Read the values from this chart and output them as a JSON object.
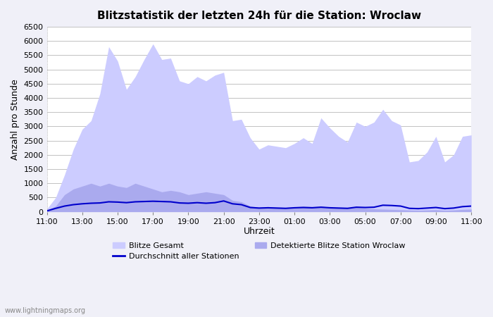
{
  "title": "Blitzstatistik der letzten 24h für die Station: Wroclaw",
  "xlabel": "Uhrzeit",
  "ylabel": "Anzahl pro Stunde",
  "watermark": "www.lightningmaps.org",
  "x_labels": [
    "11:00",
    "13:00",
    "15:00",
    "17:00",
    "19:00",
    "21:00",
    "23:00",
    "01:00",
    "03:00",
    "05:00",
    "07:00",
    "09:00",
    "11:00"
  ],
  "ylim": [
    0,
    6500
  ],
  "yticks": [
    0,
    500,
    1000,
    1500,
    2000,
    2500,
    3000,
    3500,
    4000,
    4500,
    5000,
    5500,
    6000,
    6500
  ],
  "bg_color": "#f0f0f8",
  "plot_bg_color": "#ffffff",
  "gesamt_color": "#ccccff",
  "gesamt_edge_color": "#ccccff",
  "wroclaw_color": "#aaaaee",
  "wroclaw_edge_color": "#aaaaee",
  "avg_line_color": "#0000cc",
  "legend_blitze_gesamt": "Blitze Gesamt",
  "legend_wroclaw": "Detektierte Blitze Station Wroclaw",
  "legend_avg": "Durchschnitt aller Stationen",
  "x_indices": [
    0,
    1,
    2,
    3,
    4,
    5,
    6,
    7,
    8,
    9,
    10,
    11,
    12,
    13,
    14,
    15,
    16,
    17,
    18,
    19,
    20,
    21,
    22,
    23,
    24,
    25,
    26,
    27,
    28,
    29,
    30,
    31,
    32,
    33,
    34,
    35,
    36,
    37,
    38,
    39,
    40,
    41,
    42,
    43,
    44,
    45,
    46,
    47,
    48
  ],
  "gesamt_values": [
    100,
    500,
    1300,
    2200,
    2900,
    3200,
    4150,
    5800,
    5300,
    4300,
    4750,
    5350,
    5900,
    5350,
    5400,
    4600,
    4500,
    4750,
    4600,
    4800,
    4900,
    3200,
    3250,
    2600,
    2200,
    2350,
    2300,
    2250,
    2400,
    2600,
    2400,
    3300,
    2950,
    2650,
    2450,
    3150,
    3000,
    3150,
    3600,
    3200,
    3050,
    1750,
    1800,
    2100,
    2650,
    1750,
    2000,
    2650,
    2700
  ],
  "wroclaw_values": [
    50,
    200,
    600,
    800,
    900,
    1000,
    900,
    1000,
    900,
    850,
    1000,
    900,
    800,
    700,
    750,
    700,
    600,
    650,
    700,
    650,
    600,
    400,
    350,
    200,
    150,
    180,
    160,
    150,
    170,
    200,
    180,
    200,
    150,
    130,
    120,
    150,
    120,
    100,
    90,
    80,
    70,
    60,
    50,
    60,
    70,
    50,
    60,
    80,
    90
  ],
  "avg_values": [
    30,
    120,
    200,
    250,
    280,
    300,
    310,
    350,
    340,
    320,
    350,
    360,
    370,
    360,
    350,
    310,
    300,
    320,
    300,
    320,
    380,
    280,
    250,
    150,
    130,
    140,
    130,
    120,
    140,
    150,
    140,
    160,
    140,
    130,
    120,
    160,
    150,
    160,
    230,
    220,
    200,
    120,
    110,
    130,
    150,
    110,
    130,
    180,
    200
  ]
}
